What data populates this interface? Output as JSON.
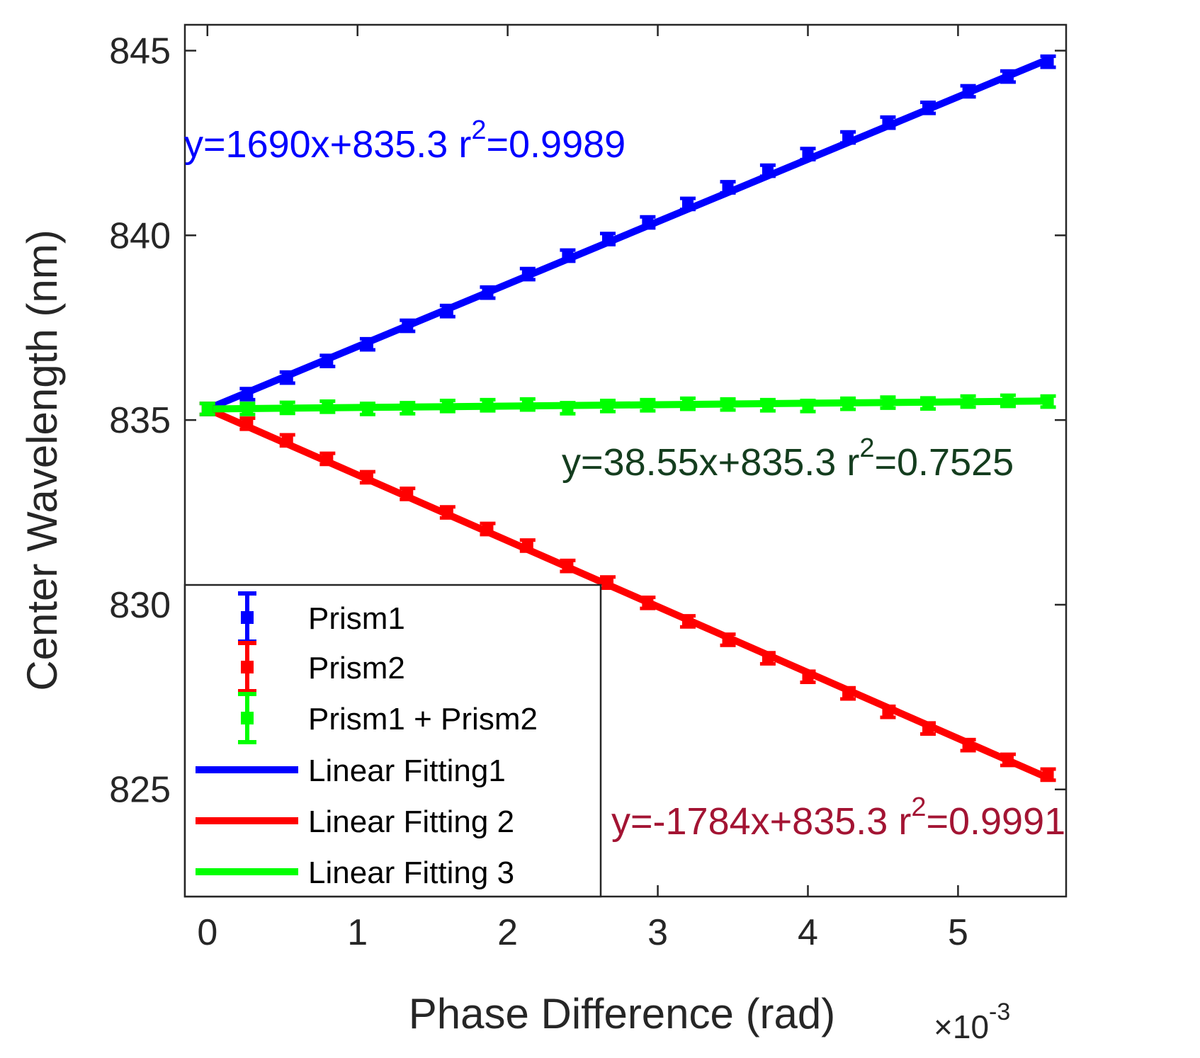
{
  "chart_data": {
    "type": "line",
    "xlabel": "Phase Difference (rad)",
    "ylabel": "Center Wavelength (nm)",
    "x_multiplier": {
      "prefix": "×10",
      "exponent": "-3"
    },
    "xlim": [
      -0.00015,
      0.00572
    ],
    "ylim": [
      822.1,
      845.7
    ],
    "xticks": [
      0,
      0.001,
      0.002,
      0.003,
      0.004,
      0.005
    ],
    "xtick_labels": [
      "0",
      "1",
      "2",
      "3",
      "4",
      "5"
    ],
    "yticks": [
      825,
      830,
      835,
      840,
      845
    ],
    "ytick_labels": [
      "825",
      "830",
      "835",
      "840",
      "845"
    ],
    "x": [
      0,
      0.000267,
      0.000533,
      0.0008,
      0.001067,
      0.001333,
      0.0016,
      0.001867,
      0.002133,
      0.0024,
      0.002667,
      0.002933,
      0.0032,
      0.003467,
      0.003733,
      0.004,
      0.004267,
      0.004533,
      0.0048,
      0.005067,
      0.005333,
      0.0056
    ],
    "series": [
      {
        "name": "Prism1",
        "kind": "errorbar",
        "color": "#0000ff",
        "values": [
          835.3,
          835.7,
          836.15,
          836.6,
          837.05,
          837.55,
          837.95,
          838.45,
          838.95,
          839.45,
          839.9,
          840.35,
          840.85,
          841.3,
          841.75,
          842.2,
          842.65,
          843.05,
          843.45,
          843.9,
          844.3,
          844.7
        ],
        "error": 0.15
      },
      {
        "name": "Prism2",
        "kind": "errorbar",
        "color": "#ff0000",
        "values": [
          835.3,
          834.9,
          834.45,
          833.95,
          833.45,
          833.0,
          832.5,
          832.05,
          831.6,
          831.05,
          830.6,
          830.05,
          829.55,
          829.05,
          828.55,
          828.05,
          827.6,
          827.1,
          826.65,
          826.2,
          825.8,
          825.4
        ],
        "error": 0.15
      },
      {
        "name": "Prism1 + Prism2",
        "kind": "errorbar",
        "color": "#00ff00",
        "values": [
          835.3,
          835.3,
          835.33,
          835.36,
          835.3,
          835.32,
          835.38,
          835.4,
          835.42,
          835.32,
          835.38,
          835.4,
          835.44,
          835.42,
          835.4,
          835.38,
          835.44,
          835.47,
          835.45,
          835.5,
          835.52,
          835.5
        ],
        "error": 0.15
      },
      {
        "name": "Linear Fitting1",
        "kind": "line",
        "color": "#0000ff",
        "slope": 1690,
        "intercept": 835.3
      },
      {
        "name": "Linear Fitting 2",
        "kind": "line",
        "color": "#ff0000",
        "slope": -1784,
        "intercept": 835.3
      },
      {
        "name": "Linear Fitting 3",
        "kind": "line",
        "color": "#00ff00",
        "slope": 38.55,
        "intercept": 835.3
      }
    ],
    "annotations": [
      {
        "main": "y=1690x+835.3 r",
        "sup": "2",
        "tail": "=0.9989",
        "color": "#0000ff"
      },
      {
        "main": "y=38.55x+835.3 r",
        "sup": "2",
        "tail": "=0.7525",
        "color": "#143d1e"
      },
      {
        "main": "y=-1784x+835.3 r",
        "sup": "2",
        "tail": "=0.9991",
        "color": "#a31433"
      }
    ],
    "legend": {
      "position": "bottom-left",
      "entries": [
        "Prism1",
        "Prism2",
        "Prism1 + Prism2",
        "Linear Fitting1",
        "Linear Fitting 2",
        "Linear Fitting 3"
      ]
    }
  }
}
